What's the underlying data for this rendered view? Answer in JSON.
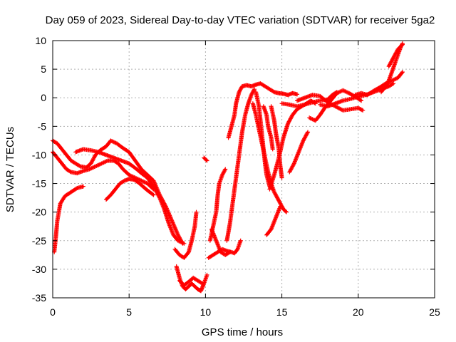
{
  "chart_data": {
    "type": "scatter",
    "title": "Day 059 of 2023, Sidereal Day-to-day VTEC variation (SDTVAR) for receiver 5ga2",
    "xlabel": "GPS time / hours",
    "ylabel": "SDTVAR / TECUs",
    "xlim": [
      0,
      25
    ],
    "ylim": [
      -35,
      10
    ],
    "x_ticks": [
      "0",
      "5",
      "10",
      "15",
      "20",
      "25"
    ],
    "y_ticks": [
      "10",
      "5",
      "0",
      "-5",
      "-10",
      "-15",
      "-20",
      "-25",
      "-30",
      "-35"
    ],
    "grid": true,
    "marker": "+",
    "color": "#ff0000",
    "series": [
      {
        "points": [
          [
            0.1,
            -27.0
          ],
          [
            0.2,
            -24.5
          ],
          [
            0.3,
            -21.5
          ],
          [
            0.5,
            -18.5
          ],
          [
            0.8,
            -17.2
          ],
          [
            1.2,
            -16.5
          ],
          [
            1.6,
            -15.8
          ],
          [
            2.0,
            -15.5
          ]
        ]
      },
      {
        "points": [
          [
            0.0,
            -9.5
          ],
          [
            0.3,
            -10.5
          ],
          [
            0.6,
            -11.5
          ],
          [
            0.9,
            -12.5
          ],
          [
            1.2,
            -13.0
          ],
          [
            1.6,
            -13.2
          ],
          [
            2.0,
            -12.8
          ],
          [
            2.4,
            -12.5
          ],
          [
            2.8,
            -12.0
          ],
          [
            3.2,
            -11.5
          ],
          [
            3.6,
            -11.0
          ],
          [
            4.0,
            -11.0
          ],
          [
            4.3,
            -11.5
          ],
          [
            4.6,
            -12.5
          ],
          [
            5.0,
            -13.5
          ],
          [
            5.4,
            -14.0
          ],
          [
            5.8,
            -14.5
          ],
          [
            6.2,
            -15.0
          ],
          [
            6.6,
            -16.0
          ]
        ]
      },
      {
        "points": [
          [
            0.0,
            -7.5
          ],
          [
            0.3,
            -8.0
          ],
          [
            0.6,
            -9.0
          ],
          [
            0.9,
            -10.0
          ],
          [
            1.2,
            -11.0
          ],
          [
            1.5,
            -11.5
          ],
          [
            1.8,
            -12.0
          ],
          [
            2.2,
            -12.2
          ],
          [
            2.5,
            -11.5
          ],
          [
            2.8,
            -10.0
          ],
          [
            3.1,
            -9.2
          ],
          [
            3.5,
            -8.5
          ],
          [
            3.8,
            -7.5
          ],
          [
            4.2,
            -8.0
          ],
          [
            4.6,
            -8.8
          ],
          [
            5.0,
            -9.5
          ],
          [
            5.4,
            -11.0
          ],
          [
            5.8,
            -12.5
          ],
          [
            6.2,
            -13.5
          ],
          [
            6.6,
            -14.5
          ],
          [
            7.0,
            -17.0
          ],
          [
            7.4,
            -19.0
          ],
          [
            7.8,
            -21.5
          ],
          [
            8.2,
            -24.0
          ],
          [
            8.5,
            -25.5
          ]
        ]
      },
      {
        "points": [
          [
            1.5,
            -9.5
          ],
          [
            2.0,
            -9.0
          ],
          [
            2.5,
            -9.2
          ],
          [
            3.0,
            -9.5
          ],
          [
            3.5,
            -10.0
          ],
          [
            4.0,
            -10.5
          ],
          [
            4.5,
            -11.0
          ],
          [
            5.0,
            -11.5
          ],
          [
            5.5,
            -12.5
          ],
          [
            5.8,
            -13.2
          ],
          [
            6.2,
            -14.0
          ],
          [
            6.6,
            -15.5
          ],
          [
            7.0,
            -17.5
          ],
          [
            7.3,
            -19.5
          ],
          [
            7.6,
            -22.0
          ],
          [
            7.9,
            -24.0
          ],
          [
            8.2,
            -25.0
          ],
          [
            8.6,
            -25.5
          ]
        ]
      },
      {
        "points": [
          [
            3.5,
            -17.8
          ],
          [
            3.8,
            -17.0
          ],
          [
            4.1,
            -16.0
          ],
          [
            4.4,
            -15.0
          ],
          [
            4.7,
            -14.5
          ],
          [
            5.0,
            -14.2
          ],
          [
            5.3,
            -14.3
          ],
          [
            5.6,
            -14.8
          ],
          [
            5.9,
            -15.5
          ],
          [
            6.2,
            -16.2
          ],
          [
            6.6,
            -17.0
          ]
        ]
      },
      {
        "points": [
          [
            8.0,
            -26.5
          ],
          [
            8.3,
            -27.5
          ],
          [
            8.6,
            -28.0
          ],
          [
            8.9,
            -27.0
          ],
          [
            9.1,
            -25.0
          ],
          [
            9.3,
            -22.5
          ],
          [
            9.4,
            -20.0
          ]
        ]
      },
      {
        "points": [
          [
            8.1,
            -29.5
          ],
          [
            8.3,
            -31.5
          ],
          [
            8.5,
            -33.0
          ],
          [
            8.7,
            -33.5
          ],
          [
            8.9,
            -33.0
          ],
          [
            9.1,
            -32.5
          ],
          [
            9.3,
            -33.0
          ],
          [
            9.5,
            -33.5
          ],
          [
            9.7,
            -33.8
          ],
          [
            9.9,
            -32.5
          ],
          [
            10.1,
            -31.0
          ]
        ]
      },
      {
        "points": [
          [
            8.3,
            -32.0
          ],
          [
            8.6,
            -32.8
          ],
          [
            8.9,
            -32.2
          ],
          [
            9.2,
            -31.5
          ],
          [
            9.5,
            -32.0
          ],
          [
            9.8,
            -32.5
          ]
        ]
      },
      {
        "points": [
          [
            9.9,
            -10.5
          ],
          [
            10.1,
            -11.0
          ]
        ]
      },
      {
        "points": [
          [
            10.2,
            -28.0
          ],
          [
            10.5,
            -27.5
          ],
          [
            10.8,
            -27.0
          ],
          [
            11.1,
            -26.5
          ],
          [
            11.4,
            -26.8
          ],
          [
            11.7,
            -27.0
          ],
          [
            11.9,
            -27.2
          ],
          [
            12.1,
            -26.5
          ],
          [
            12.3,
            -25.0
          ]
        ]
      },
      {
        "points": [
          [
            10.3,
            -25.0
          ],
          [
            10.5,
            -22.5
          ],
          [
            10.7,
            -20.0
          ],
          [
            10.8,
            -17.0
          ],
          [
            10.9,
            -15.0
          ],
          [
            11.1,
            -13.5
          ],
          [
            11.3,
            -12.5
          ]
        ]
      },
      {
        "points": [
          [
            10.4,
            -23.0
          ],
          [
            10.7,
            -25.0
          ],
          [
            11.0,
            -27.0
          ],
          [
            11.3,
            -27.5
          ],
          [
            11.6,
            -27.0
          ]
        ]
      },
      {
        "points": [
          [
            11.4,
            -25.0
          ],
          [
            11.6,
            -22.0
          ],
          [
            11.8,
            -18.0
          ],
          [
            12.0,
            -14.0
          ],
          [
            12.2,
            -10.0
          ],
          [
            12.4,
            -6.0
          ],
          [
            12.6,
            -3.0
          ],
          [
            12.8,
            -1.0
          ],
          [
            13.0,
            0.5
          ],
          [
            13.2,
            1.5
          ]
        ]
      },
      {
        "points": [
          [
            11.5,
            -7.0
          ],
          [
            11.7,
            -5.0
          ],
          [
            11.9,
            -3.0
          ],
          [
            12.0,
            -1.0
          ],
          [
            12.2,
            1.0
          ],
          [
            12.4,
            2.0
          ],
          [
            12.7,
            2.2
          ],
          [
            13.0,
            2.0
          ],
          [
            13.3,
            2.3
          ],
          [
            13.6,
            2.5
          ],
          [
            13.9,
            2.0
          ],
          [
            14.2,
            1.5
          ],
          [
            14.5,
            1.0
          ],
          [
            14.8,
            0.8
          ],
          [
            15.1,
            0.7
          ],
          [
            15.4,
            0.5
          ],
          [
            15.7,
            0.8
          ],
          [
            16.0,
            0.6
          ]
        ]
      },
      {
        "points": [
          [
            13.1,
            -1.0
          ],
          [
            13.3,
            -3.0
          ],
          [
            13.5,
            -5.5
          ],
          [
            13.7,
            -8.0
          ],
          [
            13.9,
            -10.5
          ],
          [
            14.1,
            -13.0
          ],
          [
            14.3,
            -15.0
          ],
          [
            14.5,
            -16.5
          ],
          [
            14.7,
            -17.5
          ],
          [
            14.9,
            -18.5
          ],
          [
            15.1,
            -19.5
          ],
          [
            15.3,
            -20.0
          ]
        ]
      },
      {
        "points": [
          [
            13.3,
            1.0
          ],
          [
            13.5,
            -1.5
          ],
          [
            13.6,
            -4.0
          ],
          [
            13.7,
            -6.5
          ],
          [
            13.8,
            -9.0
          ],
          [
            13.9,
            -11.5
          ],
          [
            14.0,
            -13.5
          ],
          [
            14.2,
            -15.5
          ],
          [
            14.4,
            -16.0
          ]
        ]
      },
      {
        "points": [
          [
            13.8,
            -1.5
          ],
          [
            14.0,
            -3.0
          ],
          [
            14.1,
            -5.0
          ],
          [
            14.3,
            -7.0
          ],
          [
            14.4,
            -9.0
          ]
        ]
      },
      {
        "points": [
          [
            14.3,
            -1.5
          ],
          [
            14.5,
            -4.0
          ],
          [
            14.6,
            -6.0
          ],
          [
            14.8,
            -9.0
          ],
          [
            14.9,
            -12.0
          ],
          [
            15.0,
            -14.0
          ]
        ]
      },
      {
        "points": [
          [
            14.0,
            -24.0
          ],
          [
            14.3,
            -23.0
          ],
          [
            14.6,
            -21.0
          ],
          [
            14.9,
            -19.0
          ]
        ]
      },
      {
        "points": [
          [
            14.2,
            -16.0
          ],
          [
            14.5,
            -13.5
          ],
          [
            14.8,
            -10.5
          ],
          [
            15.1,
            -7.0
          ],
          [
            15.4,
            -4.5
          ],
          [
            15.7,
            -3.0
          ],
          [
            16.0,
            -2.0
          ],
          [
            16.3,
            -1.5
          ],
          [
            16.6,
            -1.0
          ],
          [
            16.9,
            -0.5
          ],
          [
            17.2,
            -1.0
          ]
        ]
      },
      {
        "points": [
          [
            15.5,
            -13.0
          ],
          [
            15.8,
            -11.5
          ],
          [
            16.1,
            -9.5
          ],
          [
            16.4,
            -7.5
          ],
          [
            16.7,
            -6.0
          ]
        ]
      },
      {
        "points": [
          [
            15.0,
            -1.0
          ],
          [
            15.5,
            -1.2
          ],
          [
            16.0,
            -1.5
          ],
          [
            16.5,
            -1.2
          ],
          [
            17.0,
            -0.8
          ],
          [
            17.5,
            -0.5
          ],
          [
            18.0,
            -0.3
          ],
          [
            18.3,
            0.5
          ],
          [
            18.6,
            1.0
          ]
        ]
      },
      {
        "points": [
          [
            16.0,
            -0.5
          ],
          [
            16.5,
            0.0
          ],
          [
            17.0,
            0.5
          ],
          [
            17.5,
            0.3
          ],
          [
            18.0,
            -0.8
          ],
          [
            18.5,
            -1.5
          ],
          [
            19.0,
            -2.2
          ],
          [
            19.5,
            -2.0
          ],
          [
            20.0,
            -1.8
          ],
          [
            20.3,
            -2.2
          ]
        ]
      },
      {
        "points": [
          [
            16.8,
            -3.5
          ],
          [
            17.2,
            -4.0
          ],
          [
            17.5,
            -3.0
          ],
          [
            17.8,
            -1.8
          ],
          [
            18.2,
            -0.5
          ],
          [
            18.6,
            0.8
          ],
          [
            19.0,
            1.3
          ],
          [
            19.4,
            0.8
          ],
          [
            19.8,
            0.2
          ],
          [
            20.2,
            -0.5
          ]
        ]
      },
      {
        "points": [
          [
            17.5,
            -1.2
          ],
          [
            18.0,
            -1.5
          ],
          [
            18.5,
            -1.0
          ],
          [
            19.0,
            -0.5
          ],
          [
            19.5,
            -0.2
          ],
          [
            20.0,
            0.2
          ],
          [
            20.5,
            0.5
          ],
          [
            21.0,
            1.0
          ],
          [
            21.5,
            1.5
          ],
          [
            22.0,
            2.0
          ],
          [
            22.3,
            2.5
          ]
        ]
      },
      {
        "points": [
          [
            19.8,
            0.5
          ],
          [
            20.2,
            0.8
          ],
          [
            20.6,
            0.5
          ],
          [
            21.0,
            1.2
          ],
          [
            21.4,
            1.8
          ],
          [
            21.8,
            2.5
          ],
          [
            22.2,
            3.0
          ],
          [
            22.6,
            3.5
          ],
          [
            22.9,
            4.5
          ]
        ]
      },
      {
        "points": [
          [
            21.5,
            1.0
          ],
          [
            21.8,
            2.0
          ],
          [
            22.0,
            3.0
          ],
          [
            22.2,
            4.5
          ],
          [
            22.4,
            6.0
          ],
          [
            22.6,
            7.5
          ],
          [
            22.8,
            9.0
          ],
          [
            22.9,
            9.5
          ]
        ]
      },
      {
        "points": [
          [
            22.0,
            5.5
          ],
          [
            22.3,
            7.0
          ],
          [
            22.6,
            8.5
          ],
          [
            22.9,
            9.3
          ]
        ]
      }
    ]
  }
}
